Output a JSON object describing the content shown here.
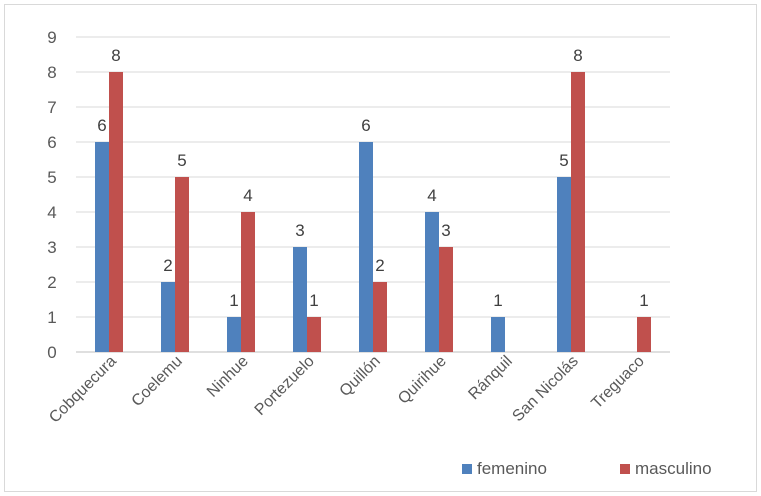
{
  "chart_data": {
    "type": "bar",
    "title": "",
    "xlabel": "",
    "ylabel": "",
    "ylim": [
      0,
      9
    ],
    "yticks": [
      0,
      1,
      2,
      3,
      4,
      5,
      6,
      7,
      8,
      9
    ],
    "grid": true,
    "legend_position": "bottom-right",
    "categories": [
      "Cobquecura",
      "Coelemu",
      "Ninhue",
      "Portezuelo",
      "Quillón",
      "Quirihue",
      "Ránquil",
      "San Nicolás",
      "Treguaco"
    ],
    "series": [
      {
        "name": "femenino",
        "color": "#4f81bd",
        "values": [
          6,
          2,
          1,
          3,
          6,
          4,
          1,
          5,
          0
        ],
        "labels": [
          "6",
          "2",
          "1",
          "3",
          "6",
          "4",
          "1",
          "5",
          ""
        ]
      },
      {
        "name": "masculino",
        "color": "#c0504d",
        "values": [
          8,
          5,
          4,
          1,
          2,
          3,
          0,
          8,
          1
        ],
        "labels": [
          "8",
          "5",
          "4",
          "1",
          "2",
          "3",
          "",
          "8",
          "1"
        ]
      }
    ]
  }
}
